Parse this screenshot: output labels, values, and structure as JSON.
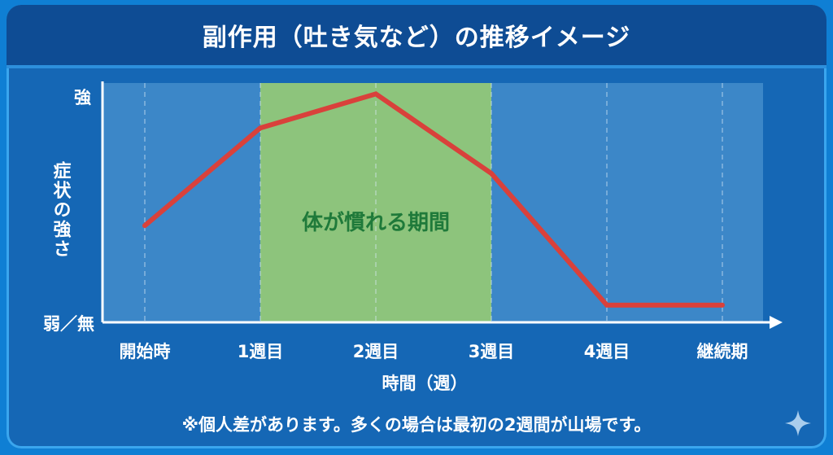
{
  "header": {
    "title": "副作用（吐き気など）の推移イメージ"
  },
  "chart_data": {
    "type": "line",
    "ylabel": "症状の強さ",
    "xlabel": "時間（週）",
    "y_ticks": [
      "弱／無",
      "強"
    ],
    "categories": [
      "開始時",
      "1週目",
      "2週目",
      "3週目",
      "4週目",
      "継続期"
    ],
    "x": [
      0,
      1,
      2,
      3,
      4,
      5
    ],
    "series": [
      {
        "values": [
          0.39,
          0.82,
          0.97,
          0.62,
          0.04,
          0.04
        ]
      }
    ],
    "ylim": [
      0,
      1
    ],
    "highlight_region": {
      "label": "体が慣れる期間",
      "x_start": 1,
      "x_end": 3
    },
    "grid": "vertical dashed",
    "colors": {
      "line": "#d9413b",
      "highlight": "#8dc47c",
      "highlight_text": "#1f7a3a",
      "plot_bg": "#3c87c8",
      "axis": "#ffffff"
    }
  },
  "footnote": "※個人差があります。多くの場合は最初の2週間が山場です。"
}
